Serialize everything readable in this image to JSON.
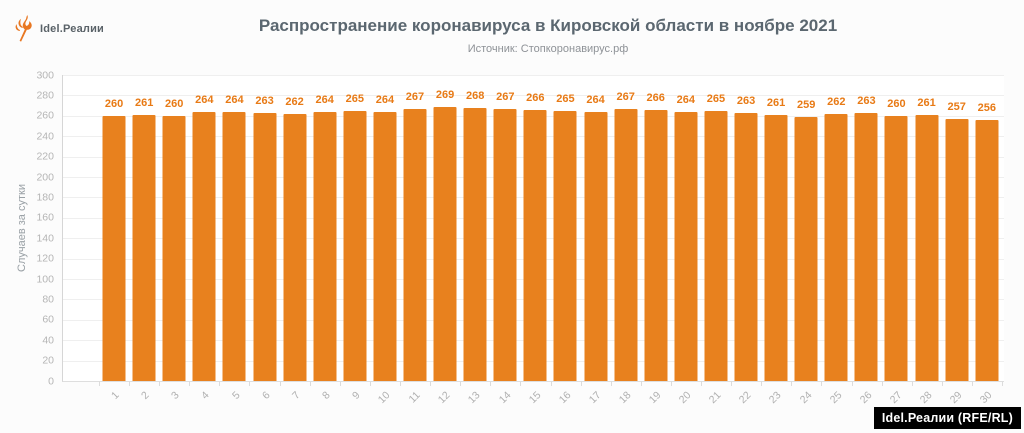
{
  "brand": {
    "name": "Idel.Реалии",
    "icon": "rferl-torch-icon",
    "accent_color": "#E87722"
  },
  "header": {
    "title": "Распространение коронавируса в Кировской области в ноябре 2021",
    "subtitle": "Источник: Стопкоронавирус.рф"
  },
  "chart_data": {
    "type": "bar",
    "title": "Распространение коронавируса в Кировской области в ноябре 2021",
    "subtitle": "Источник: Стопкоронавирус.рф",
    "categories": [
      "1",
      "2",
      "3",
      "4",
      "5",
      "6",
      "7",
      "8",
      "9",
      "10",
      "11",
      "12",
      "13",
      "14",
      "15",
      "16",
      "17",
      "18",
      "19",
      "20",
      "21",
      "22",
      "23",
      "24",
      "25",
      "26",
      "27",
      "28",
      "29",
      "30"
    ],
    "values": [
      260,
      261,
      260,
      264,
      264,
      263,
      262,
      264,
      265,
      264,
      267,
      269,
      268,
      267,
      266,
      265,
      264,
      267,
      266,
      264,
      265,
      263,
      261,
      259,
      262,
      263,
      260,
      261,
      257,
      256
    ],
    "xlabel": "",
    "ylabel": "Случаев за сутки",
    "ylim": [
      0,
      300
    ],
    "ytick_step": 20,
    "grid": true,
    "legend": false,
    "bar_color": "#E8811E",
    "value_label_color": "#E87A15",
    "axis_label_color": "#b5b5b5"
  },
  "watermark": {
    "text": "Idel.Реалии (RFE/RL)",
    "bg": "#000000",
    "color": "#ffffff"
  }
}
